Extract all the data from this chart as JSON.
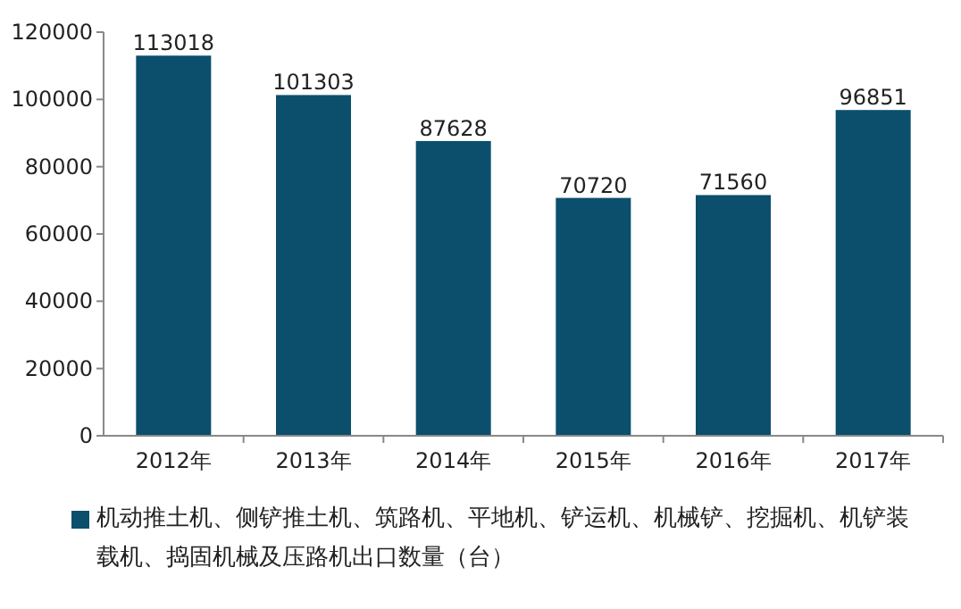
{
  "chart_data": {
    "type": "bar",
    "categories": [
      "2012年",
      "2013年",
      "2014年",
      "2015年",
      "2016年",
      "2017年"
    ],
    "series": [
      {
        "name": "机动推土机、侧铲推土机、筑路机、平地机、铲运机、机械铲、挖掘机、机铲装载机、捣固机械及压路机出口数量（台）",
        "color": "#0b4f6c",
        "values": [
          113018,
          101303,
          87628,
          70720,
          71560,
          96851
        ]
      }
    ],
    "ylim": [
      0,
      120000
    ],
    "yticks": [
      0,
      20000,
      40000,
      60000,
      80000,
      100000,
      120000
    ],
    "data_labels": true,
    "grid": false,
    "legend": "bottom"
  }
}
